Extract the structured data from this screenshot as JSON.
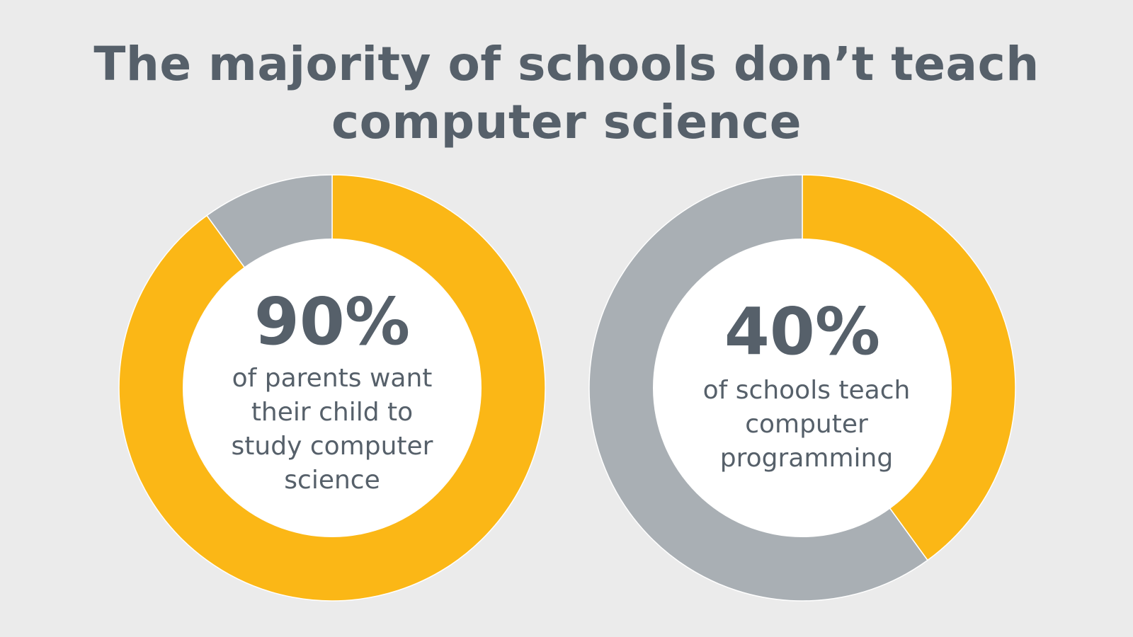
{
  "title": "The majority of schools don’t teach computer science",
  "colors": {
    "background": "#ebebeb",
    "highlight": "#fbb716",
    "remainder": "#a9afb4",
    "center": "#ffffff",
    "text": "#56606a"
  },
  "chart_data": [
    {
      "type": "pie",
      "label": "90%",
      "description_lines": [
        "of parents want",
        "their child to",
        "study computer",
        "science"
      ],
      "slices": [
        {
          "value": 90,
          "color": "#fbb716"
        },
        {
          "value": 10,
          "color": "#a9afb4"
        }
      ]
    },
    {
      "type": "pie",
      "label": "40%",
      "description_lines": [
        "of schools teach",
        "computer",
        "programming"
      ],
      "slices": [
        {
          "value": 40,
          "color": "#fbb716"
        },
        {
          "value": 60,
          "color": "#a9afb4"
        }
      ]
    }
  ]
}
